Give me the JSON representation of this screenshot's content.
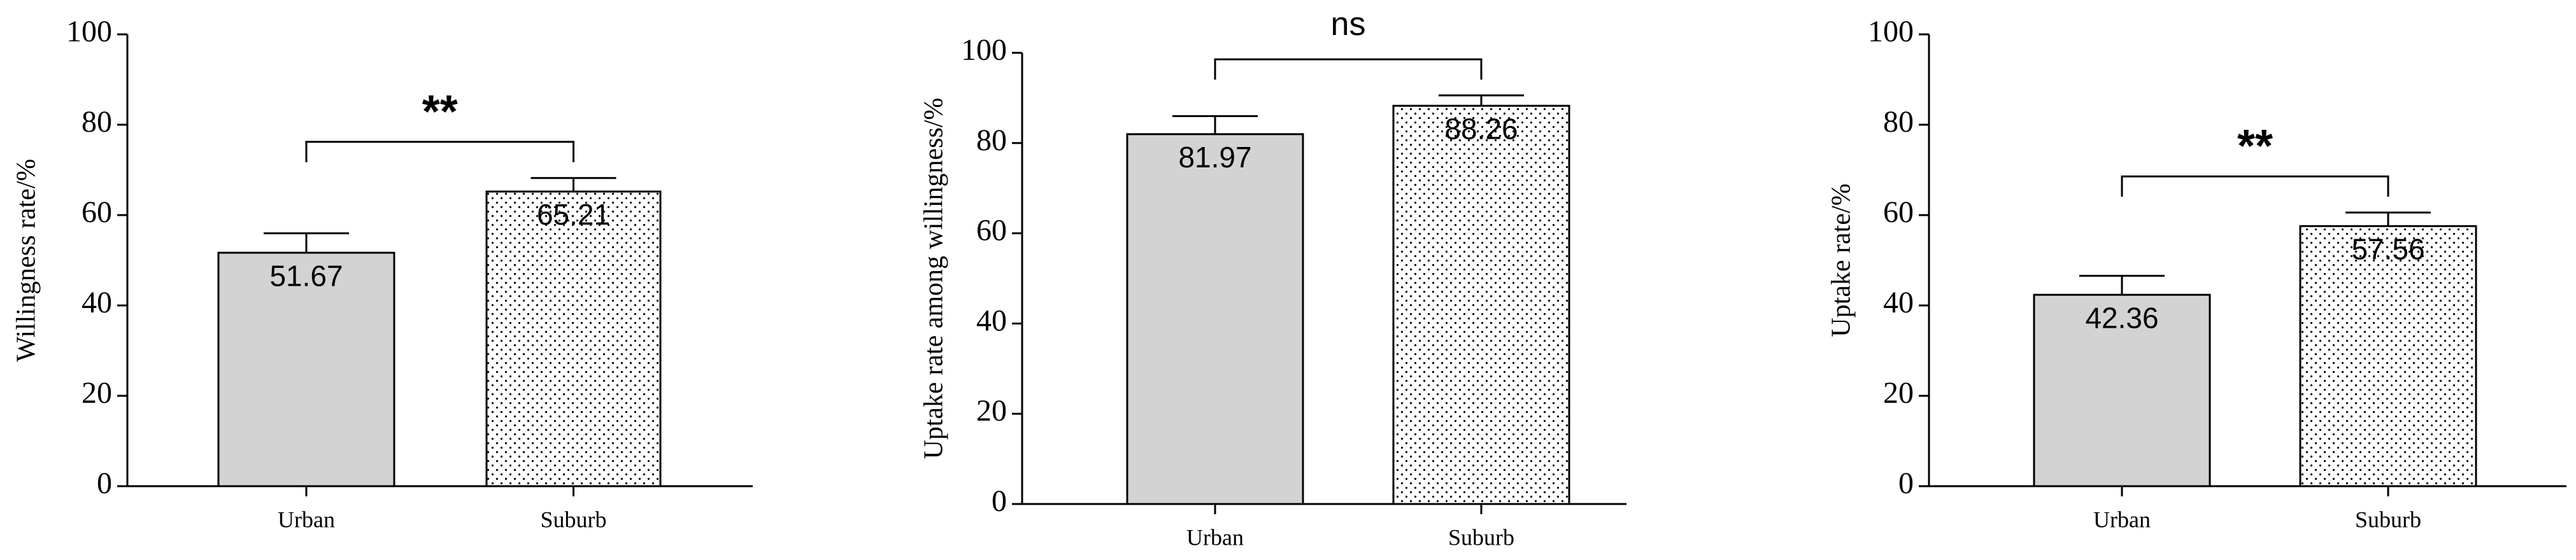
{
  "chart_data": [
    {
      "type": "bar",
      "ylabel": "Willingness rate/%",
      "categories": [
        "Urban",
        "Suburb"
      ],
      "values": [
        51.67,
        65.21
      ],
      "errors": [
        4.3,
        3.0
      ],
      "colors": [
        "#d3d3d3",
        "#ffffff"
      ],
      "patterns": [
        "none",
        "dots"
      ],
      "annotation": "**",
      "ylim": [
        0,
        100
      ],
      "yticks": [
        0,
        20,
        40,
        60,
        80,
        100
      ]
    },
    {
      "type": "bar",
      "ylabel": "Uptake rate among willingness/%",
      "categories": [
        "Urban",
        "Suburb"
      ],
      "values": [
        81.97,
        88.26
      ],
      "errors": [
        4.0,
        2.3
      ],
      "colors": [
        "#d3d3d3",
        "#ffffff"
      ],
      "patterns": [
        "none",
        "dots"
      ],
      "annotation": "ns",
      "ylim": [
        0,
        100
      ],
      "yticks": [
        0,
        20,
        40,
        60,
        80,
        100
      ]
    },
    {
      "type": "bar",
      "ylabel": "Uptake rate/%",
      "categories": [
        "Urban",
        "Suburb"
      ],
      "values": [
        42.36,
        57.56
      ],
      "errors": [
        4.2,
        3.0
      ],
      "colors": [
        "#d3d3d3",
        "#ffffff"
      ],
      "patterns": [
        "none",
        "dots"
      ],
      "annotation": "**",
      "ylim": [
        0,
        100
      ],
      "yticks": [
        0,
        20,
        40,
        60,
        80,
        100
      ]
    }
  ]
}
